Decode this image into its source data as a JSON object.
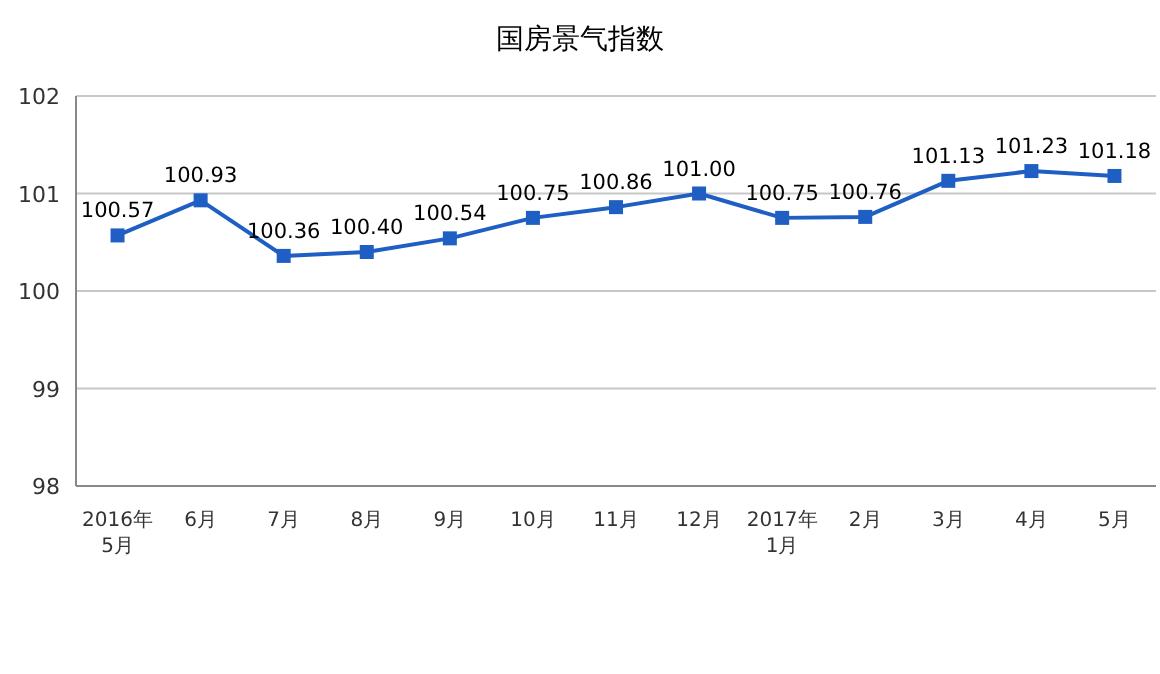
{
  "chart_data": {
    "type": "line",
    "title": "国房景气指数",
    "categories": [
      "2016年\n5月",
      "6月",
      "7月",
      "8月",
      "9月",
      "10月",
      "11月",
      "12月",
      "2017年\n1月",
      "2月",
      "3月",
      "4月",
      "5月"
    ],
    "series": [
      {
        "color": "#1f5fc4",
        "values": [
          100.57,
          100.93,
          100.36,
          100.4,
          100.54,
          100.75,
          100.86,
          101.0,
          100.75,
          100.76,
          101.13,
          101.23,
          101.18
        ]
      }
    ],
    "value_labels": [
      "100.57",
      "100.93",
      "100.36",
      "100.40",
      "100.54",
      "100.75",
      "100.86",
      "101.00",
      "100.75",
      "100.76",
      "101.13",
      "101.23",
      "101.18"
    ],
    "ylim": [
      98,
      102
    ],
    "yticks": [
      98,
      99,
      100,
      101,
      102
    ],
    "grid": "y",
    "marker": "square",
    "line_style": "solid"
  }
}
